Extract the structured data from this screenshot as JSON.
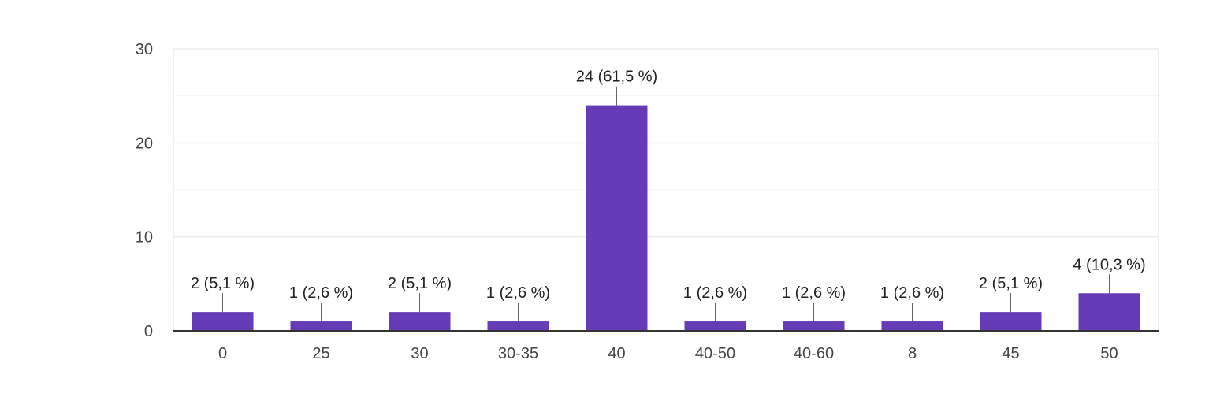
{
  "chart_data": {
    "type": "bar",
    "categories": [
      "0",
      "25",
      "30",
      "30-35",
      "40",
      "40-50",
      "40-60",
      "8",
      "45",
      "50"
    ],
    "values": [
      2,
      1,
      2,
      1,
      24,
      1,
      1,
      1,
      2,
      4
    ],
    "data_labels": [
      "2 (5,1 %)",
      "1 (2,6 %)",
      "2 (5,1 %)",
      "1 (2,6 %)",
      "24 (61,5 %)",
      "1 (2,6 %)",
      "1 (2,6 %)",
      "1 (2,6 %)",
      "2 (5,1 %)",
      "4 (10,3 %)"
    ],
    "y_ticks": [
      "0",
      "10",
      "20",
      "30"
    ],
    "ylim": [
      0,
      30
    ],
    "grid": true,
    "title": "",
    "xlabel": "",
    "ylabel": "",
    "colors": {
      "bar": "#673ab7",
      "grid": "#ebebeb",
      "grid_minor": "#f4f4f4",
      "axis": "#333333",
      "tick_text": "#444444",
      "label_text": "#222222",
      "leader": "#666666"
    }
  }
}
